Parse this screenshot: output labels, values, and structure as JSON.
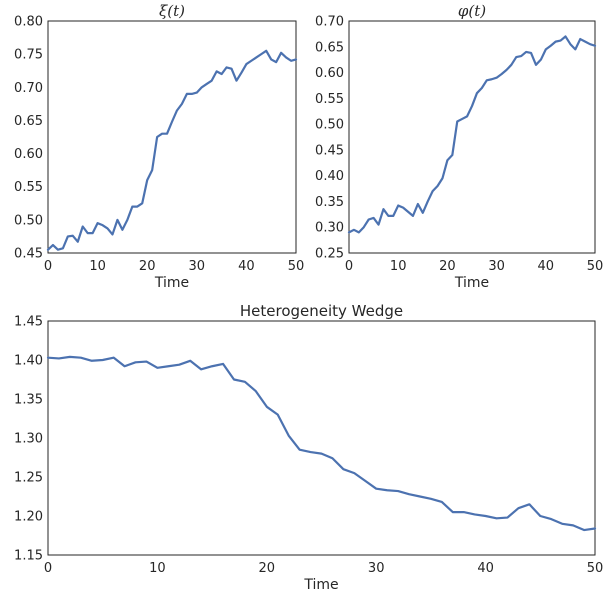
{
  "chart_data": [
    {
      "type": "line",
      "title": "ξ(t)",
      "xlabel": "Time",
      "ylabel": "",
      "xlim": [
        0,
        50
      ],
      "ylim": [
        0.45,
        0.8
      ],
      "xticks": [
        0,
        10,
        20,
        30,
        40,
        50
      ],
      "yticks": [
        "0.45",
        "0.50",
        "0.55",
        "0.60",
        "0.65",
        "0.70",
        "0.75",
        "0.80"
      ],
      "grid": false,
      "color": "#4c72b0",
      "series": [
        {
          "x": [
            0,
            1,
            2,
            3,
            4,
            5,
            6,
            7,
            8,
            9,
            10,
            11,
            12,
            13,
            14,
            15,
            16,
            17,
            18,
            19,
            20,
            21,
            22,
            23,
            24,
            25,
            26,
            27,
            28,
            29,
            30,
            31,
            32,
            33,
            34,
            35,
            36,
            37,
            38,
            39,
            40,
            41,
            42,
            43,
            44,
            45,
            46,
            47,
            48,
            49,
            50
          ],
          "values": [
            0.455,
            0.462,
            0.455,
            0.457,
            0.475,
            0.476,
            0.467,
            0.49,
            0.48,
            0.48,
            0.495,
            0.492,
            0.487,
            0.478,
            0.5,
            0.485,
            0.5,
            0.52,
            0.52,
            0.525,
            0.56,
            0.575,
            0.625,
            0.63,
            0.63,
            0.648,
            0.665,
            0.675,
            0.69,
            0.69,
            0.692,
            0.7,
            0.705,
            0.71,
            0.724,
            0.72,
            0.73,
            0.728,
            0.71,
            0.722,
            0.735,
            0.74,
            0.745,
            0.75,
            0.755,
            0.742,
            0.738,
            0.752,
            0.745,
            0.74,
            0.742
          ]
        }
      ]
    },
    {
      "type": "line",
      "title": "φ(t)",
      "xlabel": "Time",
      "ylabel": "",
      "xlim": [
        0,
        50
      ],
      "ylim": [
        0.25,
        0.7
      ],
      "xticks": [
        0,
        10,
        20,
        30,
        40,
        50
      ],
      "yticks": [
        "0.25",
        "0.30",
        "0.35",
        "0.40",
        "0.45",
        "0.50",
        "0.55",
        "0.60",
        "0.65",
        "0.70"
      ],
      "grid": false,
      "color": "#4c72b0",
      "series": [
        {
          "x": [
            0,
            1,
            2,
            3,
            4,
            5,
            6,
            7,
            8,
            9,
            10,
            11,
            12,
            13,
            14,
            15,
            16,
            17,
            18,
            19,
            20,
            21,
            22,
            23,
            24,
            25,
            26,
            27,
            28,
            29,
            30,
            31,
            32,
            33,
            34,
            35,
            36,
            37,
            38,
            39,
            40,
            41,
            42,
            43,
            44,
            45,
            46,
            47,
            48,
            49,
            50
          ],
          "values": [
            0.29,
            0.295,
            0.29,
            0.3,
            0.315,
            0.318,
            0.305,
            0.335,
            0.322,
            0.322,
            0.342,
            0.338,
            0.33,
            0.322,
            0.345,
            0.328,
            0.35,
            0.37,
            0.38,
            0.395,
            0.43,
            0.44,
            0.505,
            0.51,
            0.515,
            0.535,
            0.56,
            0.57,
            0.585,
            0.587,
            0.59,
            0.597,
            0.605,
            0.615,
            0.63,
            0.632,
            0.64,
            0.638,
            0.615,
            0.625,
            0.645,
            0.652,
            0.66,
            0.662,
            0.67,
            0.655,
            0.645,
            0.665,
            0.66,
            0.655,
            0.652
          ]
        }
      ]
    },
    {
      "type": "line",
      "title": "Heterogeneity Wedge",
      "xlabel": "Time",
      "ylabel": "",
      "xlim": [
        0,
        50
      ],
      "ylim": [
        1.15,
        1.45
      ],
      "xticks": [
        0,
        10,
        20,
        30,
        40,
        50
      ],
      "yticks": [
        "1.15",
        "1.20",
        "1.25",
        "1.30",
        "1.35",
        "1.40",
        "1.45"
      ],
      "grid": false,
      "color": "#4c72b0",
      "series": [
        {
          "x": [
            0,
            1,
            2,
            3,
            4,
            5,
            6,
            7,
            8,
            9,
            10,
            11,
            12,
            13,
            14,
            15,
            16,
            17,
            18,
            19,
            20,
            21,
            22,
            23,
            24,
            25,
            26,
            27,
            28,
            29,
            30,
            31,
            32,
            33,
            34,
            35,
            36,
            37,
            38,
            39,
            40,
            41,
            42,
            43,
            44,
            45,
            46,
            47,
            48,
            49,
            50
          ],
          "values": [
            1.403,
            1.402,
            1.404,
            1.403,
            1.399,
            1.4,
            1.403,
            1.392,
            1.397,
            1.398,
            1.39,
            1.392,
            1.394,
            1.399,
            1.388,
            1.392,
            1.395,
            1.375,
            1.372,
            1.36,
            1.34,
            1.33,
            1.303,
            1.285,
            1.282,
            1.28,
            1.274,
            1.26,
            1.255,
            1.245,
            1.235,
            1.233,
            1.232,
            1.228,
            1.225,
            1.222,
            1.218,
            1.205,
            1.205,
            1.202,
            1.2,
            1.197,
            1.198,
            1.21,
            1.215,
            1.2,
            1.196,
            1.19,
            1.188,
            1.182,
            1.184
          ]
        }
      ]
    }
  ]
}
